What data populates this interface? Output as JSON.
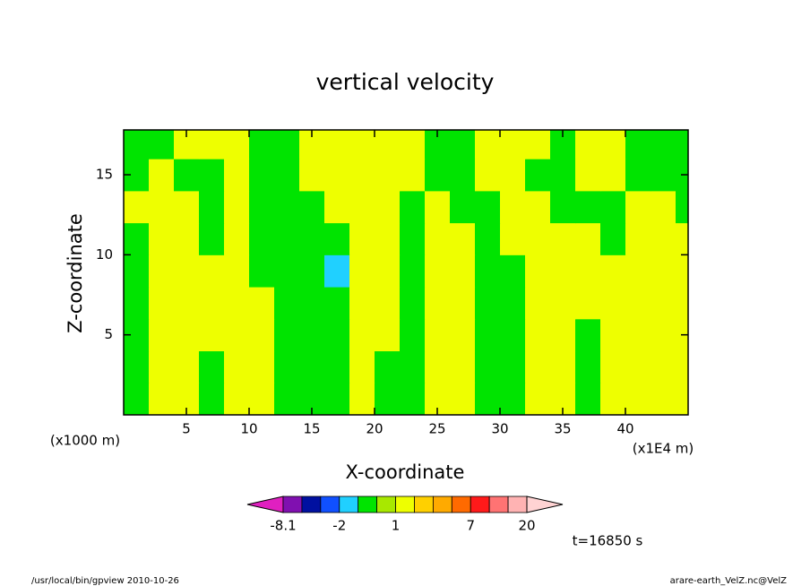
{
  "chart_data": {
    "type": "contour",
    "title": "vertical velocity",
    "xlabel": "X-coordinate",
    "ylabel": "Z-coordinate",
    "xunit": "(x1E4 m)",
    "yunit": "(x1000 m)",
    "annotation": "t=16850 s",
    "footer_left": "/usr/local/bin/gpview  2010-10-26",
    "footer_right": "arare-earth_VelZ.nc@VelZ",
    "xlim": [
      0,
      45
    ],
    "ylim": [
      0,
      17.8
    ],
    "xticks": [
      5,
      10,
      15,
      20,
      25,
      30,
      35,
      40
    ],
    "yticks": [
      5,
      10,
      15
    ],
    "x": [
      1,
      3,
      5,
      7,
      9,
      11,
      13,
      15,
      17,
      19,
      21,
      23,
      25,
      27,
      29,
      31,
      33,
      35,
      37,
      39,
      41,
      43,
      45
    ],
    "y": [
      1,
      3,
      5,
      7,
      9,
      11,
      13,
      15,
      17
    ],
    "z": [
      [
        -0.5,
        1.5,
        1.5,
        -0.5,
        1.5,
        1.5,
        -0.5,
        -0.5,
        -0.5,
        1.5,
        -0.5,
        -0.5,
        1.5,
        1.5,
        -0.5,
        -0.5,
        1.5,
        1.5,
        -0.5,
        1.5,
        1.5,
        1.5,
        1.5
      ],
      [
        -0.5,
        1.5,
        1.5,
        -0.5,
        1.5,
        1.5,
        -0.5,
        -0.5,
        -0.5,
        1.5,
        -0.5,
        -0.5,
        1.5,
        1.5,
        -0.5,
        -0.5,
        1.5,
        1.5,
        -0.5,
        1.5,
        1.5,
        1.5,
        1.5
      ],
      [
        -0.5,
        1.5,
        1.5,
        1.5,
        1.5,
        1.5,
        -0.5,
        -0.5,
        -0.5,
        1.5,
        1.5,
        -0.5,
        1.5,
        1.5,
        -0.5,
        -0.5,
        1.5,
        1.5,
        -0.5,
        1.5,
        1.5,
        1.5,
        1.5
      ],
      [
        -0.5,
        1.5,
        1.5,
        1.5,
        1.5,
        1.5,
        -0.5,
        -0.5,
        -0.5,
        1.5,
        1.5,
        -0.5,
        1.5,
        1.5,
        -0.5,
        -0.5,
        1.5,
        1.5,
        1.5,
        1.5,
        1.5,
        1.5,
        1.5
      ],
      [
        -0.5,
        1.5,
        1.5,
        1.5,
        1.5,
        -0.5,
        -0.5,
        -0.5,
        -1.5,
        1.5,
        1.5,
        -0.5,
        1.5,
        1.5,
        -0.5,
        -0.5,
        1.5,
        1.5,
        1.5,
        1.5,
        1.5,
        1.5,
        1.5
      ],
      [
        -0.5,
        1.5,
        1.5,
        -0.5,
        1.5,
        -0.5,
        -0.5,
        -0.5,
        -0.5,
        1.5,
        1.5,
        -0.5,
        1.5,
        1.5,
        -0.5,
        1.5,
        1.5,
        1.5,
        1.5,
        -0.5,
        1.5,
        1.5,
        1.5
      ],
      [
        1.5,
        1.5,
        1.5,
        -0.5,
        1.5,
        -0.5,
        -0.5,
        -0.5,
        1.5,
        1.5,
        1.5,
        -0.5,
        1.5,
        -0.5,
        -0.5,
        1.5,
        1.5,
        -0.5,
        -0.5,
        -0.5,
        1.5,
        1.5,
        -0.5
      ],
      [
        -0.5,
        1.5,
        -0.5,
        -0.5,
        1.5,
        -0.5,
        -0.5,
        1.5,
        1.5,
        1.5,
        1.5,
        1.5,
        -0.5,
        -0.5,
        1.5,
        1.5,
        -0.5,
        -0.5,
        1.5,
        1.5,
        -0.5,
        -0.5,
        -0.5
      ],
      [
        -0.5,
        -0.5,
        1.5,
        1.5,
        1.5,
        -0.5,
        -0.5,
        1.5,
        1.5,
        1.5,
        1.5,
        1.5,
        -0.5,
        -0.5,
        1.5,
        1.5,
        1.5,
        -0.5,
        1.5,
        1.5,
        -0.5,
        -0.5,
        -0.5
      ]
    ],
    "colorbar": {
      "levels": [
        -8.1,
        -5,
        -3,
        -2,
        -1,
        0,
        1,
        2,
        3,
        5,
        7,
        10,
        15,
        20
      ],
      "colors": [
        "#e020c0",
        "#8010b0",
        "#0010a0",
        "#1050ff",
        "#20d0ff",
        "#00e400",
        "#a8e800",
        "#eeff00",
        "#ffd000",
        "#ffaa00",
        "#ff6a00",
        "#ff1a1a",
        "#ff7373",
        "#ffb3b3",
        "#ffd3d3"
      ],
      "ticks": [
        -8.1,
        -2,
        1,
        7,
        20
      ]
    }
  }
}
